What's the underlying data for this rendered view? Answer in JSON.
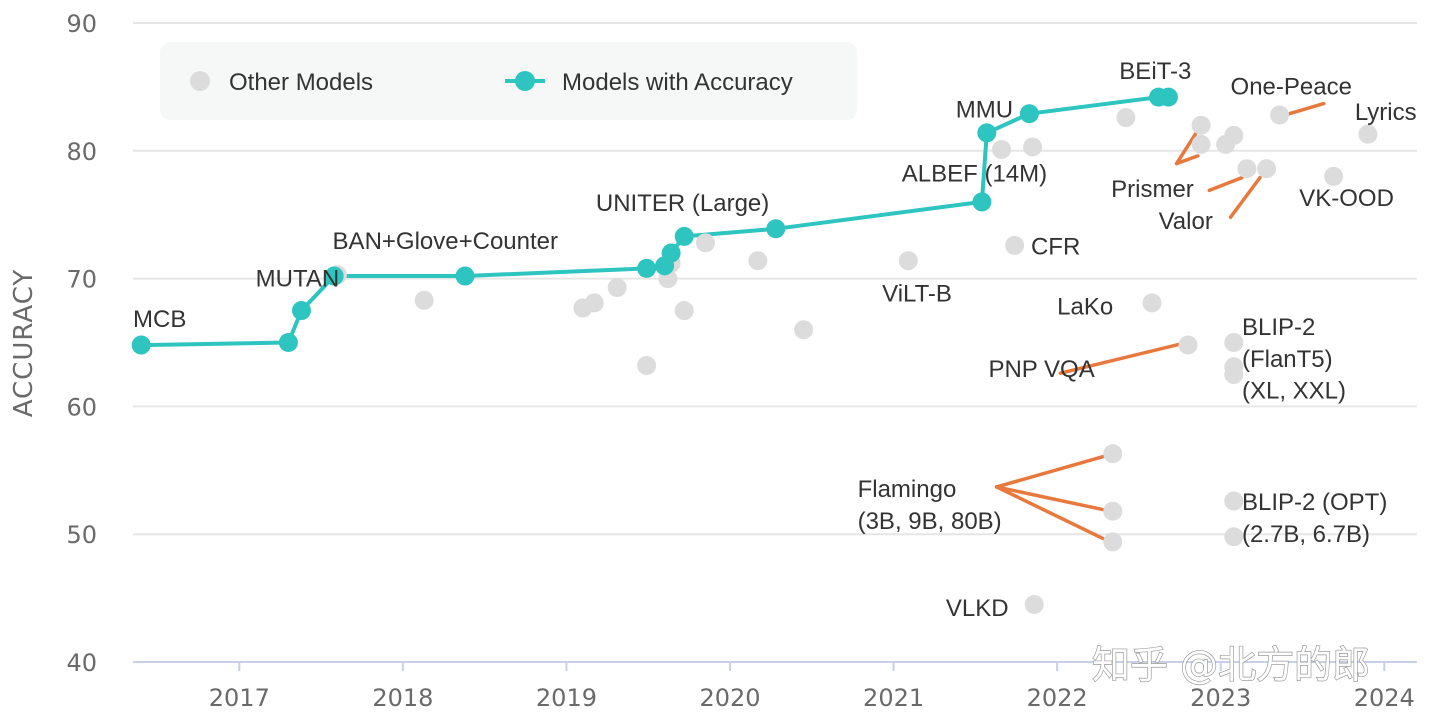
{
  "chart_data": {
    "type": "scatter",
    "ylabel": "ACCURACY",
    "ylim": [
      40,
      90
    ],
    "xlim": [
      2016.35,
      2024.2
    ],
    "yticks": [
      40,
      50,
      60,
      70,
      80,
      90
    ],
    "xticks": [
      2017,
      2018,
      2019,
      2020,
      2021,
      2022,
      2023,
      2024
    ],
    "grid": "horizontal",
    "legend": {
      "placement": "top-left",
      "items": [
        "Other Models",
        "Models with Accuracy"
      ]
    },
    "colors": {
      "series_line": "#2ec4c0",
      "other_points": "#dcdcdc",
      "leader_lines": "#e8783c",
      "grid": "#e6e6e6",
      "axis": "#c7d0e6"
    },
    "series": [
      {
        "name": "Models with Accuracy",
        "points": [
          {
            "x": 2016.4,
            "y": 64.8
          },
          {
            "x": 2017.3,
            "y": 65.0
          },
          {
            "x": 2017.38,
            "y": 67.5
          },
          {
            "x": 2017.58,
            "y": 70.2
          },
          {
            "x": 2018.38,
            "y": 70.2
          },
          {
            "x": 2019.49,
            "y": 70.8
          },
          {
            "x": 2019.6,
            "y": 71.0
          },
          {
            "x": 2019.64,
            "y": 72.0
          },
          {
            "x": 2019.72,
            "y": 73.3
          },
          {
            "x": 2020.28,
            "y": 73.9
          },
          {
            "x": 2021.54,
            "y": 76.0
          },
          {
            "x": 2021.57,
            "y": 81.4
          },
          {
            "x": 2021.83,
            "y": 82.9
          },
          {
            "x": 2022.62,
            "y": 84.2
          },
          {
            "x": 2022.68,
            "y": 84.2
          }
        ]
      },
      {
        "name": "Other Models",
        "points": [
          {
            "x": 2017.6,
            "y": 70.3
          },
          {
            "x": 2018.13,
            "y": 68.3
          },
          {
            "x": 2019.1,
            "y": 67.7
          },
          {
            "x": 2019.17,
            "y": 68.1
          },
          {
            "x": 2019.31,
            "y": 69.3
          },
          {
            "x": 2019.49,
            "y": 63.2
          },
          {
            "x": 2019.62,
            "y": 70.0
          },
          {
            "x": 2019.64,
            "y": 71.2
          },
          {
            "x": 2019.72,
            "y": 67.5
          },
          {
            "x": 2019.85,
            "y": 72.8
          },
          {
            "x": 2020.17,
            "y": 71.4
          },
          {
            "x": 2020.45,
            "y": 66.0
          },
          {
            "x": 2021.09,
            "y": 71.4
          },
          {
            "x": 2021.66,
            "y": 80.1
          },
          {
            "x": 2021.74,
            "y": 72.6
          },
          {
            "x": 2021.85,
            "y": 80.3
          },
          {
            "x": 2021.86,
            "y": 44.5
          },
          {
            "x": 2022.34,
            "y": 56.3
          },
          {
            "x": 2022.34,
            "y": 51.8
          },
          {
            "x": 2022.34,
            "y": 49.4
          },
          {
            "x": 2022.42,
            "y": 82.6
          },
          {
            "x": 2022.58,
            "y": 68.1
          },
          {
            "x": 2022.8,
            "y": 64.8
          },
          {
            "x": 2022.88,
            "y": 82.0
          },
          {
            "x": 2022.88,
            "y": 80.5
          },
          {
            "x": 2023.03,
            "y": 80.5
          },
          {
            "x": 2023.08,
            "y": 81.2
          },
          {
            "x": 2023.08,
            "y": 65.0
          },
          {
            "x": 2023.08,
            "y": 63.1
          },
          {
            "x": 2023.08,
            "y": 62.5
          },
          {
            "x": 2023.08,
            "y": 52.6
          },
          {
            "x": 2023.08,
            "y": 49.8
          },
          {
            "x": 2023.16,
            "y": 78.6
          },
          {
            "x": 2023.28,
            "y": 78.6
          },
          {
            "x": 2023.36,
            "y": 82.8
          },
          {
            "x": 2023.69,
            "y": 78.0
          },
          {
            "x": 2023.9,
            "y": 81.3
          }
        ]
      }
    ],
    "annotations": [
      {
        "text": "MCB",
        "x": 2016.35,
        "y": 66.2,
        "anchor": "start"
      },
      {
        "text": "MUTAN",
        "x": 2017.1,
        "y": 69.4,
        "anchor": "start"
      },
      {
        "text": "BAN+Glove+Counter",
        "x": 2017.57,
        "y": 72.3,
        "anchor": "start"
      },
      {
        "text": "UNITER (Large)",
        "x": 2019.18,
        "y": 75.3,
        "anchor": "start"
      },
      {
        "text": "ALBEF (14M)",
        "x": 2021.05,
        "y": 77.6,
        "anchor": "start"
      },
      {
        "text": "MMU",
        "x": 2021.38,
        "y": 82.6,
        "anchor": "start"
      },
      {
        "text": "BEiT-3",
        "x": 2022.38,
        "y": 85.6,
        "anchor": "start"
      },
      {
        "text": "One-Peace",
        "x": 2023.06,
        "y": 84.4,
        "anchor": "start"
      },
      {
        "text": "Lyrics",
        "x": 2023.82,
        "y": 82.4,
        "anchor": "start"
      },
      {
        "text": "Prismer",
        "x": 2022.33,
        "y": 76.4,
        "anchor": "start"
      },
      {
        "text": "Valor",
        "x": 2022.62,
        "y": 73.9,
        "anchor": "start"
      },
      {
        "text": "VK-OOD",
        "x": 2023.48,
        "y": 75.7,
        "anchor": "start"
      },
      {
        "text": "CFR",
        "x": 2021.84,
        "y": 71.9,
        "anchor": "start"
      },
      {
        "text": "ViLT-B",
        "x": 2020.93,
        "y": 68.2,
        "anchor": "start"
      },
      {
        "text": "LaKo",
        "x": 2022.0,
        "y": 67.2,
        "anchor": "start"
      },
      {
        "text": "PNP VQA",
        "x": 2021.58,
        "y": 62.3,
        "anchor": "start"
      },
      {
        "text": "BLIP-2",
        "x": 2023.13,
        "y": 65.6,
        "anchor": "start"
      },
      {
        "text": "(FlanT5)",
        "x": 2023.13,
        "y": 63.1,
        "anchor": "start"
      },
      {
        "text": "(XL, XXL)",
        "x": 2023.13,
        "y": 60.6,
        "anchor": "start"
      },
      {
        "text": "Flamingo",
        "x": 2020.78,
        "y": 52.9,
        "anchor": "start"
      },
      {
        "text": "(3B, 9B, 80B)",
        "x": 2020.78,
        "y": 50.4,
        "anchor": "start"
      },
      {
        "text": "BLIP-2 (OPT)",
        "x": 2023.13,
        "y": 51.9,
        "anchor": "start"
      },
      {
        "text": "(2.7B, 6.7B)",
        "x": 2023.13,
        "y": 49.4,
        "anchor": "start"
      },
      {
        "text": "VLKD",
        "x": 2021.32,
        "y": 43.6,
        "anchor": "start"
      }
    ],
    "leader_lines": [
      {
        "from": [
          2021.63,
          53.7
        ],
        "to": [
          2022.29,
          56.1
        ]
      },
      {
        "from": [
          2021.63,
          53.7
        ],
        "to": [
          2022.29,
          51.9
        ]
      },
      {
        "from": [
          2021.63,
          53.7
        ],
        "to": [
          2022.29,
          49.6
        ]
      },
      {
        "from": [
          2022.02,
          62.6
        ],
        "to": [
          2022.76,
          64.9
        ]
      },
      {
        "from": [
          2022.73,
          79.0
        ],
        "to": [
          2022.86,
          81.6
        ]
      },
      {
        "from": [
          2022.73,
          79.0
        ],
        "to": [
          2022.86,
          79.6
        ]
      },
      {
        "from": [
          2022.93,
          76.9
        ],
        "to": [
          2023.13,
          77.9
        ]
      },
      {
        "from": [
          2023.06,
          74.8
        ],
        "to": [
          2023.24,
          77.9
        ]
      },
      {
        "from": [
          2023.42,
          82.9
        ],
        "to": [
          2023.63,
          83.7
        ]
      }
    ]
  },
  "watermark": "知乎 @北方的郎"
}
